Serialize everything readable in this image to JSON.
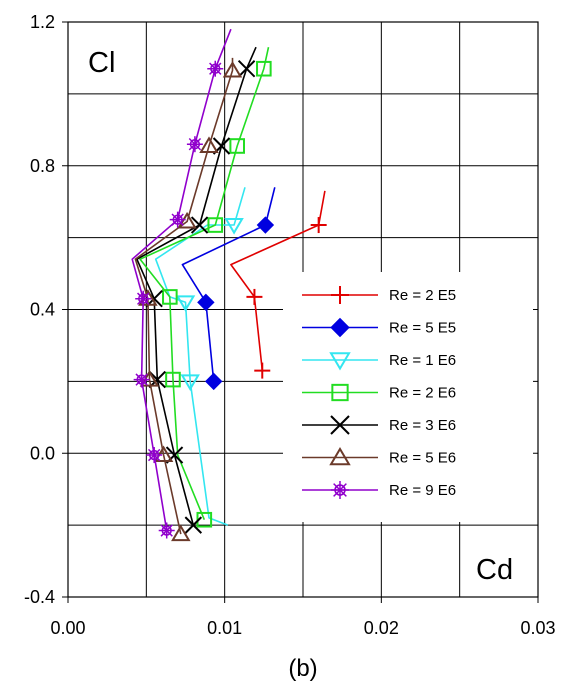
{
  "chart_data": {
    "type": "line",
    "corner_labels": {
      "y": "Cl",
      "x": "Cd"
    },
    "caption": "(b)",
    "xlim": [
      0.0,
      0.03
    ],
    "ylim": [
      -0.4,
      1.2
    ],
    "x_ticks": [
      "0.00",
      "0.01",
      "0.02",
      "0.03"
    ],
    "y_ticks": [
      "1.2",
      "0.8",
      "0.4",
      "0.0",
      "-0.4"
    ],
    "grid": true,
    "legend_position": "right",
    "series": [
      {
        "name": "Re = 2 E5",
        "color": "#e00000",
        "marker": "plus",
        "line": [
          [
            0.0164,
            0.73
          ],
          [
            0.016,
            0.635
          ],
          [
            0.0104,
            0.525
          ],
          [
            0.0119,
            0.435
          ],
          [
            0.0124,
            0.23
          ]
        ],
        "markers": [
          [
            0.016,
            0.635
          ],
          [
            0.0119,
            0.435
          ],
          [
            0.0124,
            0.23
          ]
        ]
      },
      {
        "name": "Re = 5 E5",
        "color": "#0000e0",
        "marker": "diamond",
        "line": [
          [
            0.0132,
            0.74
          ],
          [
            0.0126,
            0.635
          ],
          [
            0.0073,
            0.525
          ],
          [
            0.0088,
            0.42
          ],
          [
            0.0093,
            0.2
          ]
        ],
        "markers": [
          [
            0.0126,
            0.635
          ],
          [
            0.0088,
            0.42
          ],
          [
            0.0093,
            0.2
          ]
        ]
      },
      {
        "name": "Re = 1 E6",
        "color": "#33e6f0",
        "marker": "triangle-down",
        "line": [
          [
            0.0113,
            0.74
          ],
          [
            0.0106,
            0.635
          ],
          [
            0.0089,
            0.635
          ],
          [
            0.0056,
            0.54
          ],
          [
            0.0065,
            0.435
          ],
          [
            0.0075,
            0.42
          ],
          [
            0.0078,
            0.2
          ],
          [
            0.009,
            -0.18
          ],
          [
            0.0102,
            -0.2
          ]
        ],
        "markers": [
          [
            0.0106,
            0.635
          ],
          [
            0.0075,
            0.42
          ],
          [
            0.0078,
            0.2
          ]
        ]
      },
      {
        "name": "Re = 2 E6",
        "color": "#22dd22",
        "marker": "square",
        "line": [
          [
            0.0128,
            1.13
          ],
          [
            0.0125,
            1.07
          ],
          [
            0.0108,
            0.855
          ],
          [
            0.0094,
            0.635
          ],
          [
            0.0046,
            0.54
          ],
          [
            0.0065,
            0.435
          ],
          [
            0.0067,
            0.205
          ],
          [
            0.007,
            -0.005
          ],
          [
            0.0087,
            -0.185
          ]
        ],
        "markers": [
          [
            0.0125,
            1.07
          ],
          [
            0.0108,
            0.855
          ],
          [
            0.0094,
            0.635
          ],
          [
            0.0065,
            0.435
          ],
          [
            0.0067,
            0.205
          ],
          [
            0.0087,
            -0.185
          ]
        ]
      },
      {
        "name": "Re = 3 E6",
        "color": "#000000",
        "marker": "x",
        "line": [
          [
            0.012,
            1.13
          ],
          [
            0.0114,
            1.07
          ],
          [
            0.0098,
            0.855
          ],
          [
            0.0084,
            0.635
          ],
          [
            0.0044,
            0.54
          ],
          [
            0.0055,
            0.43
          ],
          [
            0.0057,
            0.205
          ],
          [
            0.0068,
            -0.005
          ],
          [
            0.008,
            -0.2
          ]
        ],
        "markers": [
          [
            0.0114,
            1.07
          ],
          [
            0.0098,
            0.855
          ],
          [
            0.0084,
            0.635
          ],
          [
            0.0055,
            0.43
          ],
          [
            0.0057,
            0.205
          ],
          [
            0.0068,
            -0.005
          ],
          [
            0.008,
            -0.2
          ]
        ]
      },
      {
        "name": "Re = 5 E6",
        "color": "#6b3a2a",
        "marker": "triangle-up",
        "line": [
          [
            0.0105,
            1.1
          ],
          [
            0.0105,
            1.065
          ],
          [
            0.009,
            0.855
          ],
          [
            0.0076,
            0.645
          ],
          [
            0.0043,
            0.54
          ],
          [
            0.0051,
            0.43
          ],
          [
            0.0052,
            0.205
          ],
          [
            0.0061,
            -0.005
          ],
          [
            0.0072,
            -0.225
          ]
        ],
        "markers": [
          [
            0.0105,
            1.065
          ],
          [
            0.009,
            0.855
          ],
          [
            0.0076,
            0.645
          ],
          [
            0.0051,
            0.43
          ],
          [
            0.0052,
            0.205
          ],
          [
            0.0061,
            -0.005
          ],
          [
            0.0072,
            -0.225
          ]
        ]
      },
      {
        "name": "Re = 9 E6",
        "color": "#9000cc",
        "marker": "asterisk",
        "line": [
          [
            0.0104,
            1.18
          ],
          [
            0.0094,
            1.07
          ],
          [
            0.0081,
            0.86
          ],
          [
            0.007,
            0.65
          ],
          [
            0.0041,
            0.54
          ],
          [
            0.0048,
            0.43
          ],
          [
            0.0047,
            0.205
          ],
          [
            0.0055,
            -0.005
          ],
          [
            0.0063,
            -0.215
          ]
        ],
        "markers": [
          [
            0.0094,
            1.07
          ],
          [
            0.0081,
            0.86
          ],
          [
            0.007,
            0.65
          ],
          [
            0.0048,
            0.43
          ],
          [
            0.0047,
            0.205
          ],
          [
            0.0055,
            -0.005
          ],
          [
            0.0063,
            -0.215
          ]
        ]
      }
    ]
  }
}
